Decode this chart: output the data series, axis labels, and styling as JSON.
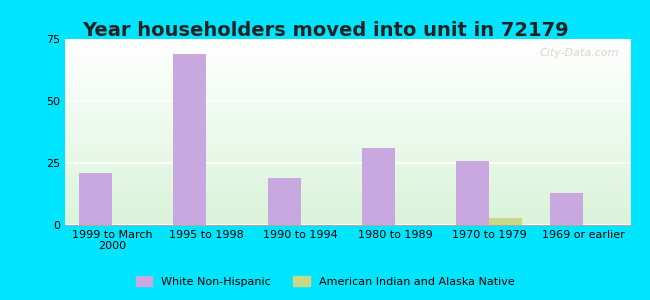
{
  "title": "Year householders moved into unit in 72179",
  "categories": [
    "1999 to March\n2000",
    "1995 to 1998",
    "1990 to 1994",
    "1980 to 1989",
    "1970 to 1979",
    "1969 or earlier"
  ],
  "white_values": [
    21,
    69,
    19,
    31,
    26,
    13
  ],
  "native_values": [
    0,
    0,
    0,
    0,
    3,
    0
  ],
  "white_color": "#c9a8e0",
  "native_color": "#c8d88a",
  "ylim": [
    0,
    75
  ],
  "yticks": [
    0,
    25,
    50,
    75
  ],
  "background_outer": "#00e5ff",
  "background_inner_top": "#ffffff",
  "background_inner_bottom": "#d4edda",
  "bar_width": 0.35,
  "legend_white": "White Non-Hispanic",
  "legend_native": "American Indian and Alaska Native",
  "title_fontsize": 14,
  "tick_fontsize": 8,
  "watermark": "City-Data.com"
}
